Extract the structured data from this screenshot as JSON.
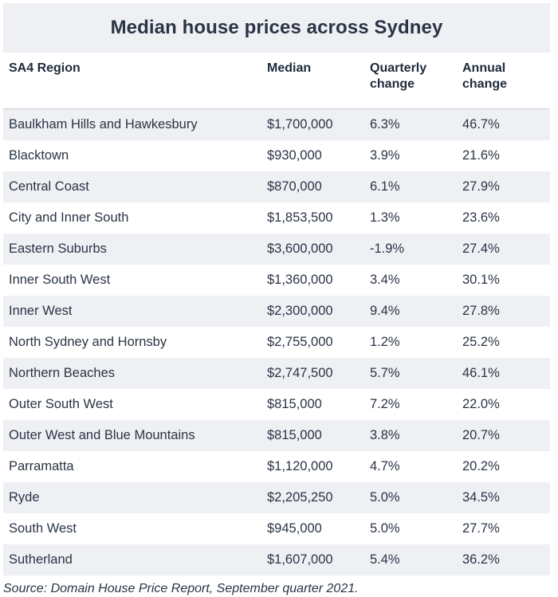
{
  "chart_data": {
    "type": "table",
    "title": "Median house prices across Sydney",
    "columns": [
      "SA4 Region",
      "Median",
      "Quarterly change",
      "Annual change"
    ],
    "rows": [
      [
        "Baulkham Hills and Hawkesbury",
        "$1,700,000",
        "6.3%",
        "46.7%"
      ],
      [
        "Blacktown",
        "$930,000",
        "3.9%",
        "21.6%"
      ],
      [
        "Central Coast",
        "$870,000",
        "6.1%",
        "27.9%"
      ],
      [
        "City and Inner South",
        "$1,853,500",
        "1.3%",
        "23.6%"
      ],
      [
        "Eastern Suburbs",
        "$3,600,000",
        "-1.9%",
        "27.4%"
      ],
      [
        "Inner South West",
        "$1,360,000",
        "3.4%",
        "30.1%"
      ],
      [
        "Inner West",
        "$2,300,000",
        "9.4%",
        "27.8%"
      ],
      [
        "North Sydney and Hornsby",
        "$2,755,000",
        "1.2%",
        "25.2%"
      ],
      [
        "Northern Beaches",
        "$2,747,500",
        "5.7%",
        "46.1%"
      ],
      [
        "Outer South West",
        "$815,000",
        "7.2%",
        "22.0%"
      ],
      [
        "Outer West and Blue Mountains",
        "$815,000",
        "3.8%",
        "20.7%"
      ],
      [
        "Parramatta",
        "$1,120,000",
        "4.7%",
        "20.2%"
      ],
      [
        "Ryde",
        "$2,205,250",
        "5.0%",
        "34.5%"
      ],
      [
        "South West",
        "$945,000",
        "5.0%",
        "27.7%"
      ],
      [
        "Sutherland",
        "$1,607,000",
        "5.4%",
        "36.2%"
      ]
    ],
    "source": "Source: Domain House Price Report, September quarter 2021."
  },
  "colors": {
    "stripe": "#eff0f4",
    "text": "#2a3445"
  }
}
